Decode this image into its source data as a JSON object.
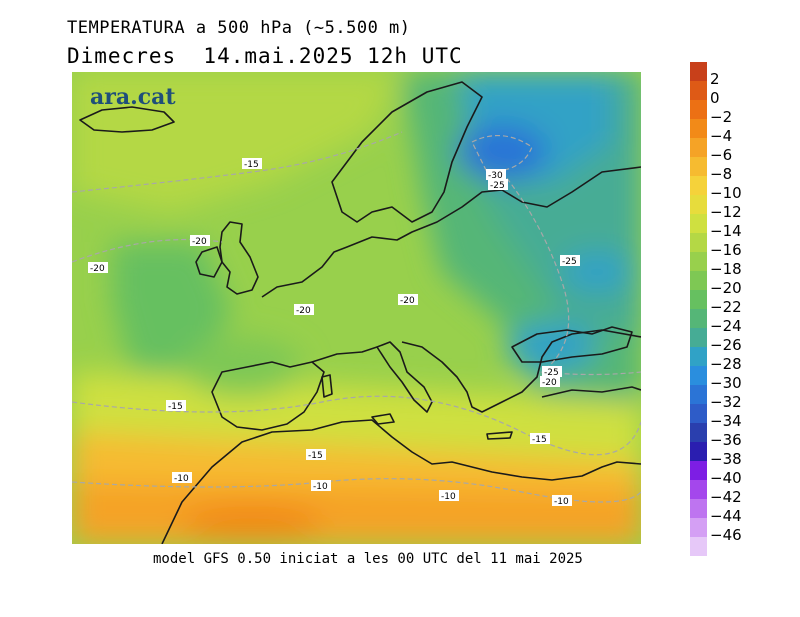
{
  "header": {
    "title": "TEMPERATURA a 500 hPa (~5.500 m)",
    "subtitle": "Dimecres  14.mai.2025 12h UTC"
  },
  "map": {
    "brand": "ara.cat",
    "isotherm_labels": [
      "-15",
      "-20",
      "-20",
      "-20",
      "-20",
      "-30",
      "-25",
      "-25",
      "-25",
      "-20",
      "-15",
      "-15",
      "-15",
      "-10",
      "-10",
      "-10",
      "-10"
    ]
  },
  "footer": {
    "text": "model GFS 0.50 iniciat a les 00 UTC del 11 mai 2025"
  },
  "legend": {
    "labels": [
      "2",
      "0",
      "−2",
      "−4",
      "−6",
      "−8",
      "−10",
      "−12",
      "−14",
      "−16",
      "−18",
      "−20",
      "−22",
      "−24",
      "−26",
      "−28",
      "−30",
      "−32",
      "−34",
      "−36",
      "−38",
      "−40",
      "−42",
      "−44",
      "−46"
    ],
    "colors": [
      "#c8401a",
      "#de5a16",
      "#ec7014",
      "#f28a18",
      "#f5a326",
      "#f6bb30",
      "#f5d23a",
      "#e7dc3c",
      "#cfe040",
      "#b4d845",
      "#98d04c",
      "#7ec854",
      "#66c060",
      "#55b677",
      "#46ac95",
      "#30a2c6",
      "#2a8ede",
      "#2b74d6",
      "#2e5cc8",
      "#2a3fae",
      "#2a1eb0",
      "#7d1ee4",
      "#a447ec",
      "#be74f0",
      "#d49ff4",
      "#e6c8f8"
    ]
  }
}
